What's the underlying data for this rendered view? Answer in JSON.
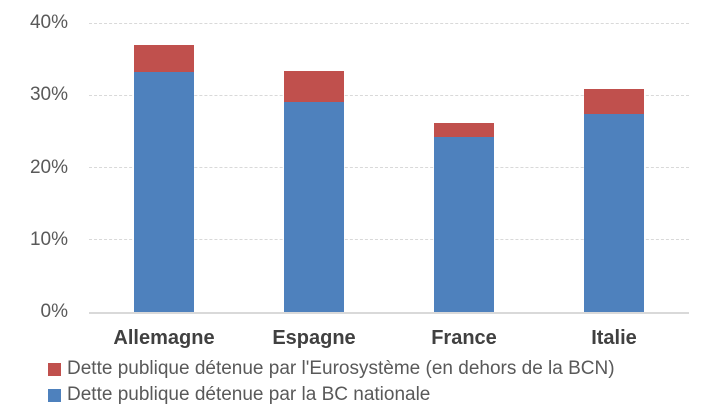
{
  "chart_data": {
    "type": "bar",
    "stacked": true,
    "title": "",
    "xlabel": "",
    "ylabel": "",
    "categories": [
      "Allemagne",
      "Espagne",
      "France",
      "Italie"
    ],
    "series": [
      {
        "name": "Dette publique détenue par la BC nationale",
        "color": "#4E81BD",
        "values": [
          33.2,
          29.1,
          24.2,
          27.4
        ]
      },
      {
        "name": "Dette publique détenue par l'Eurosystème (en dehors de la BCN)",
        "color": "#C0504D",
        "values": [
          3.8,
          4.2,
          2.0,
          3.5
        ]
      }
    ],
    "ylim": [
      0,
      40
    ],
    "yticks": [
      0,
      10,
      20,
      30,
      40
    ],
    "ytick_labels": [
      "0%",
      "10%",
      "20%",
      "30%",
      "40%"
    ],
    "grid": true,
    "legend_position": "bottom-left",
    "legend_order": [
      1,
      0
    ]
  },
  "colors": {
    "background": "#FFFFFF",
    "gridline": "#D9D9D9",
    "axis_line": "#D9D9D9",
    "tick_label": "#595959",
    "category_label": "#404040",
    "legend_label": "#595959"
  }
}
